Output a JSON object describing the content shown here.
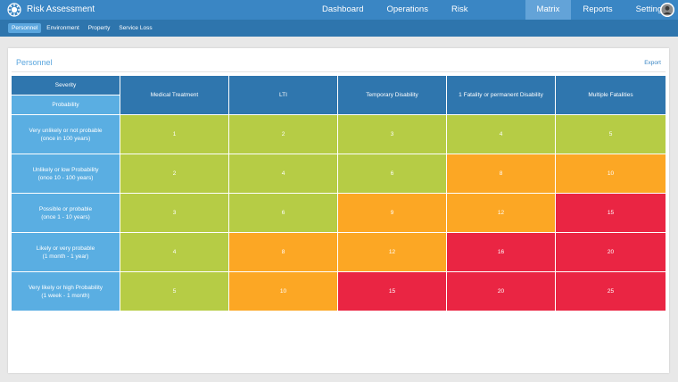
{
  "app": {
    "title": "Risk Assessment"
  },
  "nav": [
    {
      "label": "Dashboard"
    },
    {
      "label": "Operations"
    },
    {
      "label": "Risk Assessments"
    },
    {
      "label": "Matrix"
    },
    {
      "label": "Reports"
    },
    {
      "label": "Settings"
    }
  ],
  "nav_active": "Matrix",
  "subnav": [
    {
      "label": "Personnel"
    },
    {
      "label": "Environment"
    },
    {
      "label": "Property"
    },
    {
      "label": "Service Loss"
    }
  ],
  "subnav_active": "Personnel",
  "panel": {
    "title": "Personnel",
    "export_label": "Export"
  },
  "matrix": {
    "severity_label": "Severity",
    "probability_label": "Probability",
    "columns": [
      "Medical Treatment",
      "LTI",
      "Temporary Disability",
      "1 Fatality or permanent Disability",
      "Multiple Fatalities"
    ],
    "rows": [
      {
        "label_line1": "Very unlikely or not probable",
        "label_line2": "(once in 100 years)",
        "values": [
          "1",
          "2",
          "3",
          "4",
          "5"
        ]
      },
      {
        "label_line1": "Unlikely or low Probability",
        "label_line2": "(once 10 - 100 years)",
        "values": [
          "2",
          "4",
          "6",
          "8",
          "10"
        ]
      },
      {
        "label_line1": "Possible or probable",
        "label_line2": "(once 1 - 10 years)",
        "values": [
          "3",
          "6",
          "9",
          "12",
          "15"
        ]
      },
      {
        "label_line1": "Likely or very probable",
        "label_line2": "(1 month - 1 year)",
        "values": [
          "4",
          "8",
          "12",
          "16",
          "20"
        ]
      },
      {
        "label_line1": "Very likely or high Probability",
        "label_line2": "(1 week - 1 month)",
        "values": [
          "5",
          "10",
          "15",
          "20",
          "25"
        ]
      }
    ],
    "risk_colors": {
      "low": "#b6cc45",
      "medium": "#fca724",
      "high": "#ea2543"
    }
  }
}
